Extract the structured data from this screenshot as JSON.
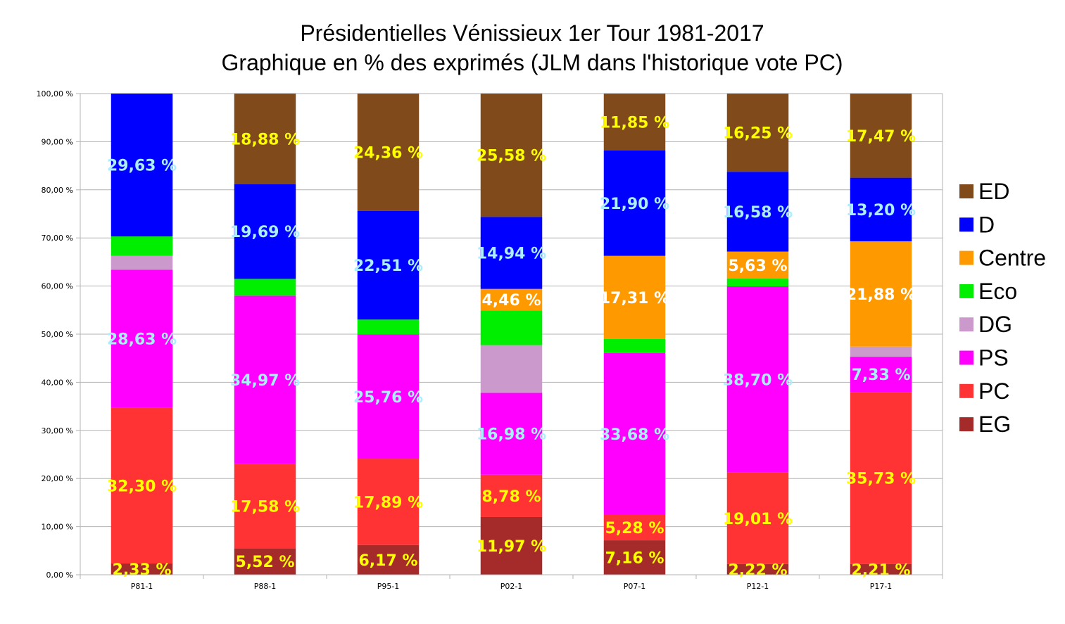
{
  "chart_data": {
    "type": "bar",
    "stacked": true,
    "title": [
      "Présidentielles Vénissieux 1er Tour 1981-2017",
      "Graphique en % des exprimés (JLM dans l'historique vote PC)"
    ],
    "categories": [
      "P81-1",
      "P88-1",
      "P95-1",
      "P02-1",
      "P07-1",
      "P12-1",
      "P17-1"
    ],
    "ylim": [
      0,
      100
    ],
    "yticks": [
      {
        "value": 0,
        "label": "0,00 %"
      },
      {
        "value": 10,
        "label": "10,00 %"
      },
      {
        "value": 20,
        "label": "20,00 %"
      },
      {
        "value": 30,
        "label": "30,00 %"
      },
      {
        "value": 40,
        "label": "40,00 %"
      },
      {
        "value": 50,
        "label": "50,00 %"
      },
      {
        "value": 60,
        "label": "60,00 %"
      },
      {
        "value": 70,
        "label": "70,00 %"
      },
      {
        "value": 80,
        "label": "80,00 %"
      },
      {
        "value": 90,
        "label": "90,00 %"
      },
      {
        "value": 100,
        "label": "100,00 %"
      }
    ],
    "grid": true,
    "legend_position": "right",
    "series": [
      {
        "name": "EG",
        "color": "#a52a2a",
        "label_color": "#ffff00",
        "values": [
          2.33,
          5.52,
          6.17,
          11.97,
          7.16,
          2.22,
          2.21
        ],
        "labels": [
          "2,33 %",
          "5,52 %",
          "6,17 %",
          "11,97 %",
          "7,16 %",
          "2,22 %",
          "2,21 %"
        ]
      },
      {
        "name": "PC",
        "color": "#ff3333",
        "label_color": "#ffff00",
        "values": [
          32.3,
          17.58,
          17.89,
          8.78,
          5.28,
          19.01,
          35.73
        ],
        "labels": [
          "32,30 %",
          "17,58 %",
          "17,89 %",
          "8,78 %",
          "5,28 %",
          "19,01 %",
          "35,73 %"
        ]
      },
      {
        "name": "PS",
        "color": "#ff00ff",
        "label_color": "#aaeeff",
        "values": [
          28.63,
          34.97,
          25.76,
          16.98,
          33.68,
          38.7,
          7.33
        ],
        "labels": [
          "28,63 %",
          "34,97 %",
          "25,76 %",
          "16,98 %",
          "33,68 %",
          "38,70 %",
          "7,33 %"
        ]
      },
      {
        "name": "DG",
        "color": "#cc99cc",
        "label_color": "#ffffff",
        "values": [
          2.9,
          0,
          0,
          9.9,
          0,
          0,
          2.1
        ],
        "labels": [
          null,
          null,
          null,
          null,
          null,
          null,
          null
        ]
      },
      {
        "name": "Eco",
        "color": "#00ee00",
        "label_color": "#ffffff",
        "values": [
          4.0,
          3.5,
          3.1,
          7.2,
          2.9,
          1.6,
          0
        ],
        "labels": [
          null,
          null,
          null,
          null,
          null,
          null,
          null
        ]
      },
      {
        "name": "Centre",
        "color": "#ff9900",
        "label_color": "#ffffff",
        "values": [
          0,
          0,
          0,
          4.46,
          17.31,
          5.63,
          21.88
        ],
        "labels": [
          null,
          null,
          null,
          "4,46 %",
          "17,31 %",
          "5,63 %",
          "21,88 %"
        ]
      },
      {
        "name": "D",
        "color": "#0000ff",
        "label_color": "#aaeeff",
        "values": [
          29.63,
          19.69,
          22.51,
          14.94,
          21.9,
          16.58,
          13.2
        ],
        "labels": [
          "29,63 %",
          "19,69 %",
          "22,51 %",
          "14,94 %",
          "21,90 %",
          "16,58 %",
          "13,20 %"
        ]
      },
      {
        "name": "ED",
        "color": "#804a1a",
        "label_color": "#ffff00",
        "values": [
          0,
          18.88,
          24.36,
          25.58,
          11.85,
          16.25,
          17.47
        ],
        "labels": [
          null,
          "18,88 %",
          "24,36 %",
          "25,58 %",
          "11,85 %",
          "16,25 %",
          "17,47 %"
        ]
      }
    ],
    "legend_order": [
      "ED",
      "D",
      "Centre",
      "Eco",
      "DG",
      "PS",
      "PC",
      "EG"
    ]
  }
}
